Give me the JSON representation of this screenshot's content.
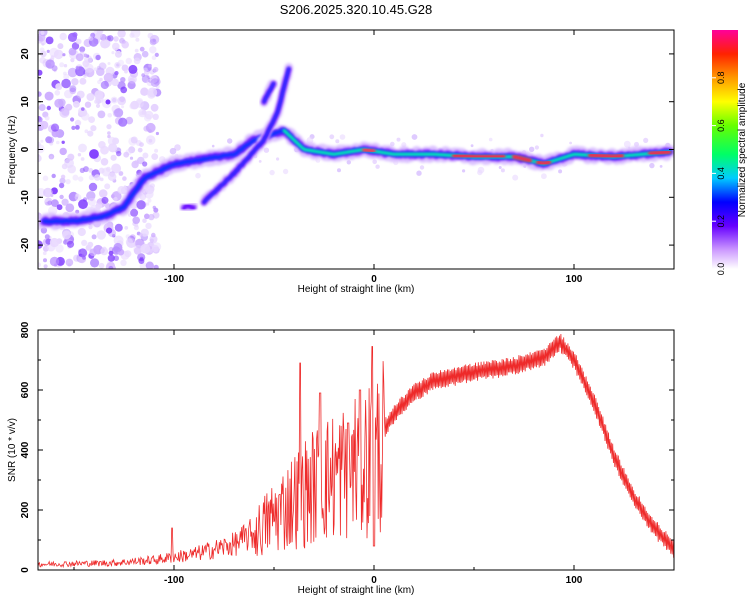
{
  "chart_data": [
    {
      "type": "heatmap",
      "title": "S206.2025.320.10.45.G28",
      "xlabel": "Height of straight line (km)",
      "ylabel": "Frequency (Hz)",
      "xlim": [
        -168,
        150
      ],
      "ylim": [
        -25,
        25
      ],
      "x_ticks": [
        -100,
        0,
        100
      ],
      "x_tick_labels": [
        "-100",
        "0",
        "100"
      ],
      "y_ticks": [
        -20,
        -10,
        0,
        10,
        20
      ],
      "y_tick_labels": [
        "-20",
        "-10",
        "0",
        "10",
        "20"
      ],
      "colorbar": {
        "label": "Normalized spectral amplitude",
        "range": [
          0,
          1
        ],
        "ticks": [
          0.0,
          0.2,
          0.4,
          0.6,
          0.8
        ],
        "tick_labels": [
          "0.0",
          "0.2",
          "0.4",
          "0.6",
          "0.8"
        ]
      },
      "ridge": {
        "description_points": [
          {
            "x": -165,
            "y": -15
          },
          {
            "x": -150,
            "y": -15
          },
          {
            "x": -135,
            "y": -14
          },
          {
            "x": -125,
            "y": -12
          },
          {
            "x": -115,
            "y": -6
          },
          {
            "x": -100,
            "y": -3
          },
          {
            "x": -85,
            "y": -2
          },
          {
            "x": -70,
            "y": -1
          },
          {
            "x": -60,
            "y": 2
          },
          {
            "x": -45,
            "y": 4
          },
          {
            "x": -35,
            "y": 0
          },
          {
            "x": -20,
            "y": -1
          },
          {
            "x": -5,
            "y": 0
          },
          {
            "x": 10,
            "y": -1
          },
          {
            "x": 30,
            "y": -1
          },
          {
            "x": 50,
            "y": -1.5
          },
          {
            "x": 70,
            "y": -1.5
          },
          {
            "x": 85,
            "y": -3
          },
          {
            "x": 100,
            "y": -1
          },
          {
            "x": 120,
            "y": -1.5
          },
          {
            "x": 148,
            "y": -0.5
          }
        ],
        "branches": [
          [
            {
              "x": -85,
              "y": -11
            },
            {
              "x": -70,
              "y": -5
            },
            {
              "x": -55,
              "y": 2
            },
            {
              "x": -48,
              "y": 8
            },
            {
              "x": -42,
              "y": 18
            }
          ],
          [
            {
              "x": -55,
              "y": 10
            },
            {
              "x": -50,
              "y": 14
            }
          ],
          [
            {
              "x": -95,
              "y": -12
            },
            {
              "x": -90,
              "y": -12
            }
          ]
        ]
      }
    },
    {
      "type": "line",
      "title": "",
      "xlabel": "Height of straight line (km)",
      "ylabel": "SNR (10 * v/v)",
      "xlim": [
        -168,
        150
      ],
      "ylim": [
        0,
        800
      ],
      "x_ticks": [
        -100,
        0,
        100
      ],
      "x_tick_labels": [
        "-100",
        "0",
        "100"
      ],
      "y_ticks": [
        0,
        200,
        400,
        600,
        800
      ],
      "y_tick_labels": [
        "0",
        "200",
        "400",
        "600",
        "800"
      ],
      "color": "#ee2a2a",
      "envelope": [
        {
          "x": -168,
          "y": 20
        },
        {
          "x": -130,
          "y": 25
        },
        {
          "x": -110,
          "y": 35
        },
        {
          "x": -90,
          "y": 55
        },
        {
          "x": -70,
          "y": 90
        },
        {
          "x": -60,
          "y": 130
        },
        {
          "x": -50,
          "y": 200
        },
        {
          "x": -40,
          "y": 260
        },
        {
          "x": -30,
          "y": 310
        },
        {
          "x": -20,
          "y": 350
        },
        {
          "x": -10,
          "y": 390
        },
        {
          "x": 0,
          "y": 420
        },
        {
          "x": 10,
          "y": 520
        },
        {
          "x": 20,
          "y": 590
        },
        {
          "x": 30,
          "y": 630
        },
        {
          "x": 50,
          "y": 660
        },
        {
          "x": 70,
          "y": 680
        },
        {
          "x": 85,
          "y": 710
        },
        {
          "x": 93,
          "y": 760
        },
        {
          "x": 100,
          "y": 700
        },
        {
          "x": 110,
          "y": 560
        },
        {
          "x": 120,
          "y": 380
        },
        {
          "x": 130,
          "y": 240
        },
        {
          "x": 140,
          "y": 140
        },
        {
          "x": 150,
          "y": 70
        }
      ],
      "spikes": [
        {
          "x": -101,
          "y": 140
        },
        {
          "x": -37,
          "y": 690
        },
        {
          "x": -27,
          "y": 590
        },
        {
          "x": -13,
          "y": 490
        },
        {
          "x": -7,
          "y": 600
        },
        {
          "x": -1,
          "y": 745
        },
        {
          "x": 0,
          "y": 80
        }
      ]
    }
  ]
}
